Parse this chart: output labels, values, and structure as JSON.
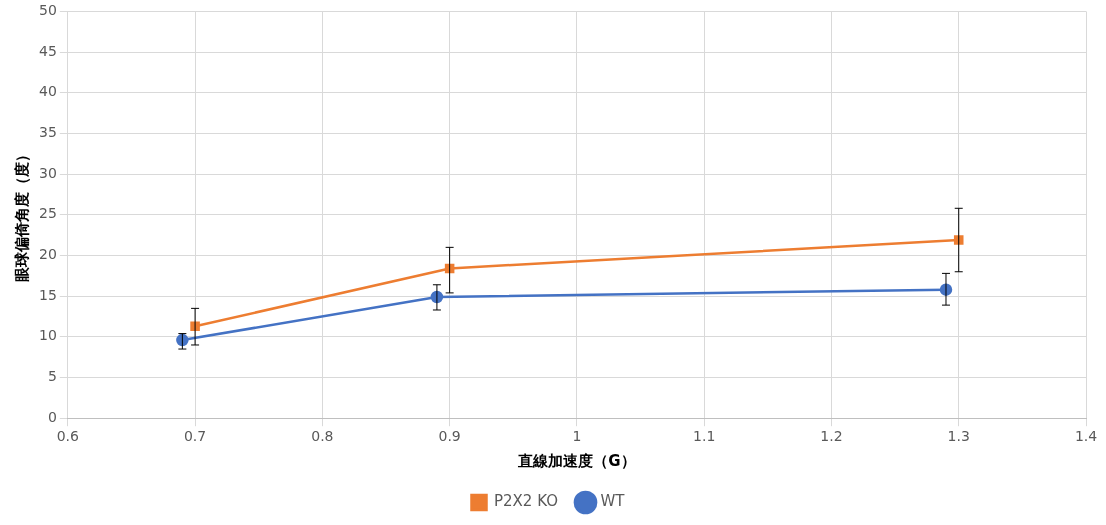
{
  "chart_data": {
    "type": "line",
    "xlabel": "直線加速度（G）",
    "ylabel": "眼球偏倚角度（度）",
    "xlim": [
      0.6,
      1.4
    ],
    "xticks": [
      0.6,
      0.7,
      0.8,
      0.9,
      1,
      1.1,
      1.2,
      1.3,
      1.4
    ],
    "ylim": [
      0,
      50
    ],
    "yticks": [
      0,
      5,
      10,
      15,
      20,
      25,
      30,
      35,
      40,
      45,
      50
    ],
    "grid": true,
    "legend": "bottom",
    "series": [
      {
        "name": "P2X2 KO",
        "color": "#ed7d31",
        "marker": "square",
        "x": [
          0.7,
          0.9,
          1.3
        ],
        "values": [
          11.3,
          18.4,
          21.9
        ],
        "errors": [
          [
            9.0,
            13.5
          ],
          [
            15.4,
            21.0
          ],
          [
            18.0,
            25.8
          ]
        ]
      },
      {
        "name": "WT",
        "color": "#4472c4",
        "marker": "circle",
        "x": [
          0.69,
          0.89,
          1.29
        ],
        "values": [
          9.6,
          14.9,
          15.8
        ],
        "errors": [
          [
            8.5,
            10.4
          ],
          [
            13.3,
            16.4
          ],
          [
            13.9,
            17.8
          ]
        ]
      }
    ]
  }
}
